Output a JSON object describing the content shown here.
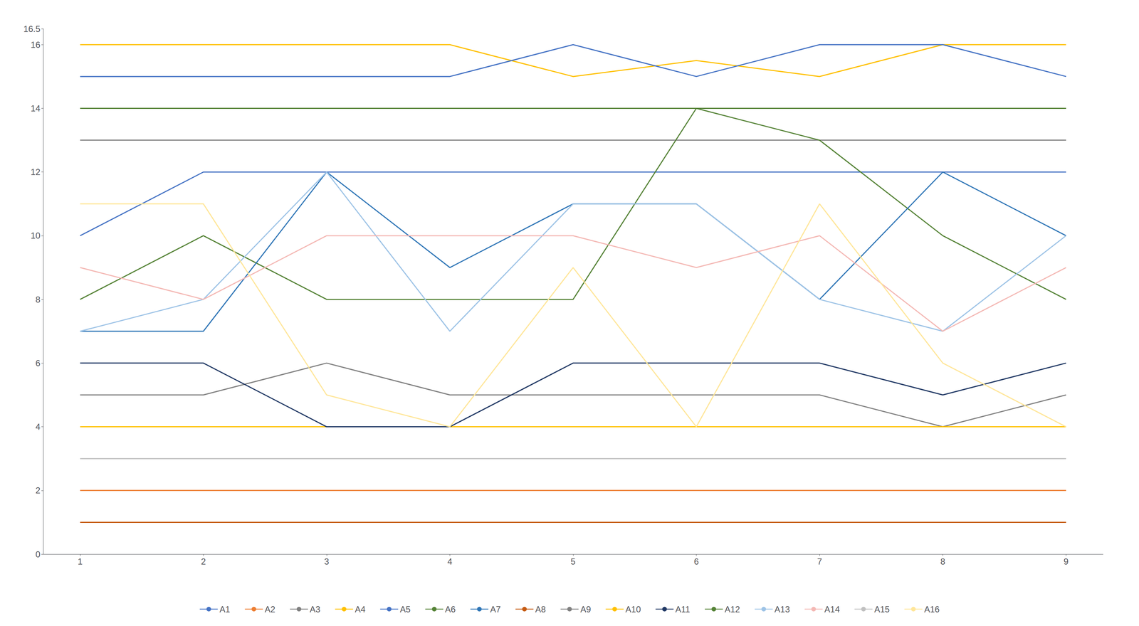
{
  "chart_data": {
    "type": "line",
    "x": [
      1,
      2,
      3,
      4,
      5,
      6,
      7,
      8,
      9
    ],
    "xlim": [
      0.7,
      9.3
    ],
    "xticks": [
      1,
      2,
      3,
      4,
      5,
      6,
      7,
      8,
      9
    ],
    "ylim": [
      0,
      16.5
    ],
    "yticks": [
      0,
      2,
      4,
      6,
      8,
      10,
      12,
      14,
      16
    ],
    "grid": false,
    "legend": "bottom",
    "series": [
      {
        "name": "A1",
        "color": "#4472C4",
        "values": [
          10,
          12,
          12,
          12,
          12,
          12,
          12,
          12,
          12
        ]
      },
      {
        "name": "A2",
        "color": "#ED7D31",
        "values": [
          2,
          2,
          2,
          2,
          2,
          2,
          2,
          2,
          2
        ]
      },
      {
        "name": "A3",
        "color": "#7F7F7F",
        "values": [
          13,
          13,
          13,
          13,
          13,
          13,
          13,
          13,
          13
        ]
      },
      {
        "name": "A4",
        "color": "#FFC000",
        "values": [
          16,
          16,
          16,
          16,
          15,
          15.5,
          15,
          16,
          16
        ]
      },
      {
        "name": "A5",
        "color": "#4472C4",
        "values": [
          15,
          15,
          15,
          15,
          16,
          15,
          16,
          16,
          15
        ]
      },
      {
        "name": "A6",
        "color": "#548235",
        "values": [
          8,
          10,
          8,
          8,
          8,
          14,
          13,
          10,
          8
        ]
      },
      {
        "name": "A7",
        "color": "#2E75B6",
        "values": [
          7,
          7,
          12,
          9,
          11,
          11,
          8,
          12,
          10
        ]
      },
      {
        "name": "A8",
        "color": "#C55A11",
        "values": [
          1,
          1,
          1,
          1,
          1,
          1,
          1,
          1,
          1
        ]
      },
      {
        "name": "A9",
        "color": "#808080",
        "values": [
          5,
          5,
          6,
          5,
          5,
          5,
          5,
          4,
          5
        ]
      },
      {
        "name": "A10",
        "color": "#FFC000",
        "values": [
          4,
          4,
          4,
          4,
          4,
          4,
          4,
          4,
          4
        ]
      },
      {
        "name": "A11",
        "color": "#203864",
        "values": [
          6,
          6,
          4,
          4,
          6,
          6,
          6,
          5,
          6
        ]
      },
      {
        "name": "A12",
        "color": "#548235",
        "values": [
          14,
          14,
          14,
          14,
          14,
          14,
          14,
          14,
          14
        ]
      },
      {
        "name": "A13",
        "color": "#9DC3E6",
        "values": [
          7,
          8,
          12,
          7,
          11,
          11,
          8,
          7,
          10
        ]
      },
      {
        "name": "A14",
        "color": "#F4B8B4",
        "values": [
          9,
          8,
          10,
          10,
          10,
          9,
          10,
          7,
          9
        ]
      },
      {
        "name": "A15",
        "color": "#C0C0C0",
        "values": [
          3,
          3,
          3,
          3,
          3,
          3,
          3,
          3,
          3
        ]
      },
      {
        "name": "A16",
        "color": "#FFE699",
        "values": [
          11,
          11,
          5,
          4,
          9,
          4,
          11,
          6,
          4
        ]
      }
    ]
  }
}
